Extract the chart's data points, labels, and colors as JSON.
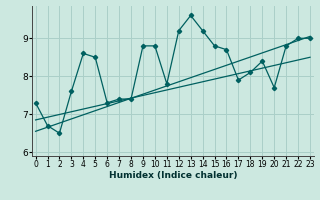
{
  "xlabel": "Humidex (Indice chaleur)",
  "ylabel": "",
  "bg_color": "#cce8e0",
  "grid_color": "#aacfc8",
  "line_color": "#006060",
  "x": [
    0,
    1,
    2,
    3,
    4,
    5,
    6,
    7,
    8,
    9,
    10,
    11,
    12,
    13,
    14,
    15,
    16,
    17,
    18,
    19,
    20,
    21,
    22,
    23
  ],
  "y": [
    7.3,
    6.7,
    6.5,
    7.6,
    8.6,
    8.5,
    7.3,
    7.4,
    7.4,
    8.8,
    8.8,
    7.8,
    9.2,
    9.6,
    9.2,
    8.8,
    8.7,
    7.9,
    8.1,
    8.4,
    7.7,
    8.8,
    9.0,
    9.0
  ],
  "trend1_start_x": 0,
  "trend1_start_y": 6.55,
  "trend1_end_x": 23,
  "trend1_end_y": 9.05,
  "trend2_start_x": 0,
  "trend2_start_y": 6.85,
  "trend2_end_x": 23,
  "trend2_end_y": 8.5,
  "ylim_min": 5.9,
  "ylim_max": 9.85,
  "xlim_min": -0.3,
  "xlim_max": 23.3,
  "yticks": [
    6,
    7,
    8,
    9
  ],
  "xticks": [
    0,
    1,
    2,
    3,
    4,
    5,
    6,
    7,
    8,
    9,
    10,
    11,
    12,
    13,
    14,
    15,
    16,
    17,
    18,
    19,
    20,
    21,
    22,
    23
  ],
  "xlabel_fontsize": 6.5,
  "tick_fontsize": 5.5,
  "ytick_fontsize": 6.5
}
